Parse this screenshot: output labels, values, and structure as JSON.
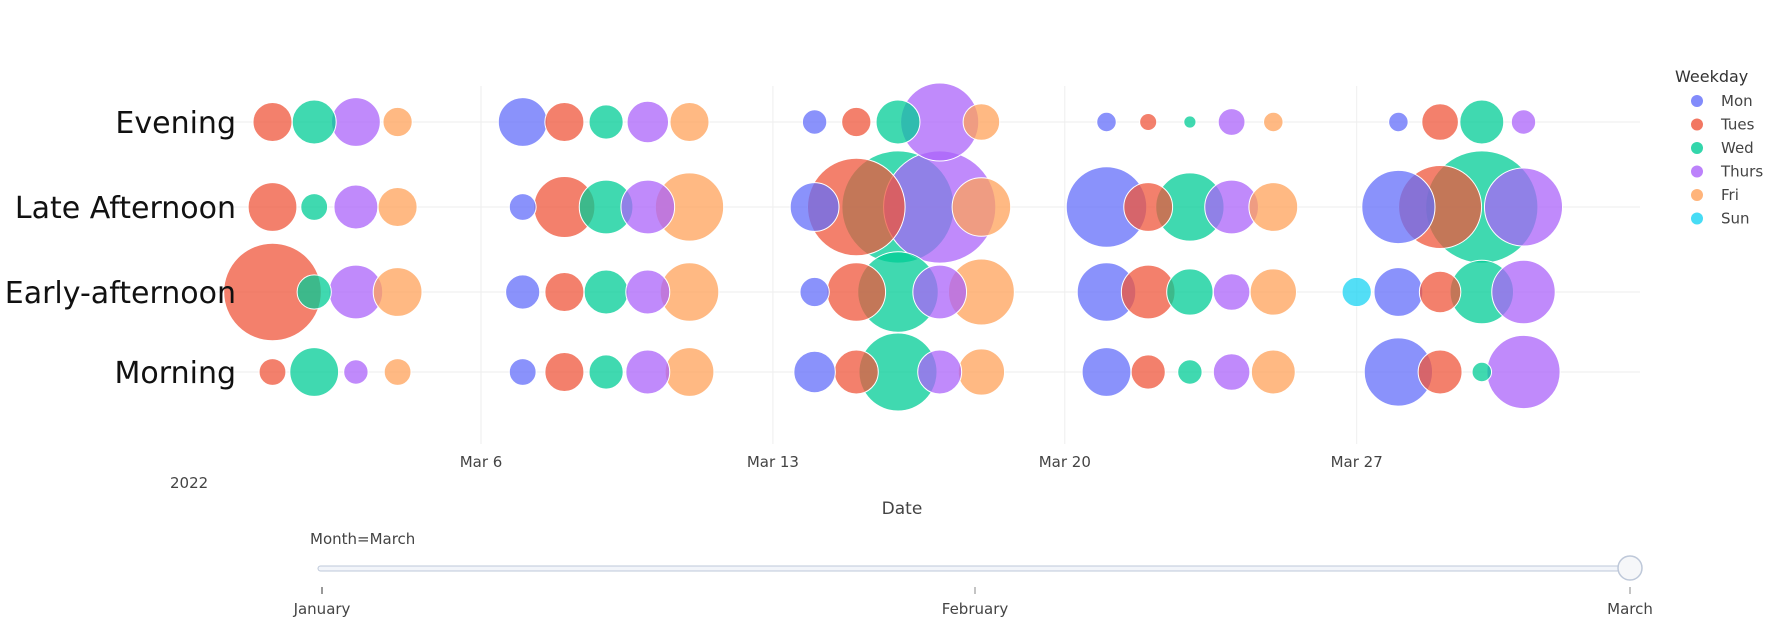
{
  "chart_data": {
    "type": "scatter",
    "xlabel": "Date",
    "year_label": "2022",
    "x_ticks": [
      "Mar 6",
      "Mar 13",
      "Mar 20",
      "Mar 27"
    ],
    "y_categories": [
      "Morning",
      "Early-afternoon",
      "Late Afternoon",
      "Evening"
    ],
    "legend": {
      "title": "Weekday",
      "position": "top-right"
    },
    "grid": true,
    "series": [
      {
        "name": "Mon",
        "color": "#636EFA",
        "points": [
          {
            "date": "2022-03-07",
            "time": "Evening",
            "size": 20
          },
          {
            "date": "2022-03-07",
            "time": "Late Afternoon",
            "size": 11
          },
          {
            "date": "2022-03-07",
            "time": "Early-afternoon",
            "size": 14
          },
          {
            "date": "2022-03-07",
            "time": "Morning",
            "size": 11
          },
          {
            "date": "2022-03-14",
            "time": "Evening",
            "size": 10
          },
          {
            "date": "2022-03-14",
            "time": "Late Afternoon",
            "size": 20
          },
          {
            "date": "2022-03-14",
            "time": "Early-afternoon",
            "size": 12
          },
          {
            "date": "2022-03-14",
            "time": "Morning",
            "size": 17
          },
          {
            "date": "2022-03-21",
            "time": "Evening",
            "size": 8
          },
          {
            "date": "2022-03-21",
            "time": "Late Afternoon",
            "size": 33
          },
          {
            "date": "2022-03-21",
            "time": "Early-afternoon",
            "size": 24
          },
          {
            "date": "2022-03-21",
            "time": "Morning",
            "size": 20
          },
          {
            "date": "2022-03-28",
            "time": "Evening",
            "size": 8
          },
          {
            "date": "2022-03-28",
            "time": "Late Afternoon",
            "size": 30
          },
          {
            "date": "2022-03-28",
            "time": "Early-afternoon",
            "size": 20
          },
          {
            "date": "2022-03-28",
            "time": "Morning",
            "size": 28
          }
        ]
      },
      {
        "name": "Tues",
        "color": "#EF553B",
        "points": [
          {
            "date": "2022-03-01",
            "time": "Evening",
            "size": 16
          },
          {
            "date": "2022-03-01",
            "time": "Late Afternoon",
            "size": 20
          },
          {
            "date": "2022-03-01",
            "time": "Early-afternoon",
            "size": 40
          },
          {
            "date": "2022-03-01",
            "time": "Morning",
            "size": 11
          },
          {
            "date": "2022-03-08",
            "time": "Evening",
            "size": 16
          },
          {
            "date": "2022-03-08",
            "time": "Late Afternoon",
            "size": 25
          },
          {
            "date": "2022-03-08",
            "time": "Early-afternoon",
            "size": 16
          },
          {
            "date": "2022-03-08",
            "time": "Morning",
            "size": 16
          },
          {
            "date": "2022-03-15",
            "time": "Evening",
            "size": 12
          },
          {
            "date": "2022-03-15",
            "time": "Late Afternoon",
            "size": 40
          },
          {
            "date": "2022-03-15",
            "time": "Early-afternoon",
            "size": 24
          },
          {
            "date": "2022-03-15",
            "time": "Morning",
            "size": 18
          },
          {
            "date": "2022-03-22",
            "time": "Evening",
            "size": 7
          },
          {
            "date": "2022-03-22",
            "time": "Late Afternoon",
            "size": 20
          },
          {
            "date": "2022-03-22",
            "time": "Early-afternoon",
            "size": 22
          },
          {
            "date": "2022-03-22",
            "time": "Morning",
            "size": 14
          },
          {
            "date": "2022-03-29",
            "time": "Evening",
            "size": 15
          },
          {
            "date": "2022-03-29",
            "time": "Late Afternoon",
            "size": 34
          },
          {
            "date": "2022-03-29",
            "time": "Early-afternoon",
            "size": 17
          },
          {
            "date": "2022-03-29",
            "time": "Morning",
            "size": 18
          }
        ]
      },
      {
        "name": "Wed",
        "color": "#00CC96",
        "points": [
          {
            "date": "2022-03-02",
            "time": "Evening",
            "size": 18
          },
          {
            "date": "2022-03-02",
            "time": "Late Afternoon",
            "size": 11
          },
          {
            "date": "2022-03-02",
            "time": "Early-afternoon",
            "size": 14
          },
          {
            "date": "2022-03-02",
            "time": "Morning",
            "size": 20
          },
          {
            "date": "2022-03-09",
            "time": "Evening",
            "size": 14
          },
          {
            "date": "2022-03-09",
            "time": "Late Afternoon",
            "size": 22
          },
          {
            "date": "2022-03-09",
            "time": "Early-afternoon",
            "size": 18
          },
          {
            "date": "2022-03-09",
            "time": "Morning",
            "size": 14
          },
          {
            "date": "2022-03-16",
            "time": "Evening",
            "size": 18
          },
          {
            "date": "2022-03-16",
            "time": "Late Afternoon",
            "size": 46
          },
          {
            "date": "2022-03-16",
            "time": "Early-afternoon",
            "size": 33
          },
          {
            "date": "2022-03-16",
            "time": "Morning",
            "size": 32
          },
          {
            "date": "2022-03-23",
            "time": "Evening",
            "size": 5
          },
          {
            "date": "2022-03-23",
            "time": "Late Afternoon",
            "size": 28
          },
          {
            "date": "2022-03-23",
            "time": "Early-afternoon",
            "size": 19
          },
          {
            "date": "2022-03-23",
            "time": "Morning",
            "size": 10
          },
          {
            "date": "2022-03-30",
            "time": "Evening",
            "size": 18
          },
          {
            "date": "2022-03-30",
            "time": "Late Afternoon",
            "size": 46
          },
          {
            "date": "2022-03-30",
            "time": "Early-afternoon",
            "size": 26
          },
          {
            "date": "2022-03-30",
            "time": "Morning",
            "size": 8
          }
        ]
      },
      {
        "name": "Thurs",
        "color": "#AB63FA",
        "points": [
          {
            "date": "2022-03-03",
            "time": "Evening",
            "size": 20
          },
          {
            "date": "2022-03-03",
            "time": "Late Afternoon",
            "size": 18
          },
          {
            "date": "2022-03-03",
            "time": "Early-afternoon",
            "size": 22
          },
          {
            "date": "2022-03-03",
            "time": "Morning",
            "size": 10
          },
          {
            "date": "2022-03-10",
            "time": "Evening",
            "size": 17
          },
          {
            "date": "2022-03-10",
            "time": "Late Afternoon",
            "size": 22
          },
          {
            "date": "2022-03-10",
            "time": "Early-afternoon",
            "size": 18
          },
          {
            "date": "2022-03-10",
            "time": "Morning",
            "size": 18
          },
          {
            "date": "2022-03-17",
            "time": "Evening",
            "size": 32
          },
          {
            "date": "2022-03-17",
            "time": "Late Afternoon",
            "size": 46
          },
          {
            "date": "2022-03-17",
            "time": "Early-afternoon",
            "size": 22
          },
          {
            "date": "2022-03-17",
            "time": "Morning",
            "size": 18
          },
          {
            "date": "2022-03-24",
            "time": "Evening",
            "size": 11
          },
          {
            "date": "2022-03-24",
            "time": "Late Afternoon",
            "size": 22
          },
          {
            "date": "2022-03-24",
            "time": "Early-afternoon",
            "size": 15
          },
          {
            "date": "2022-03-24",
            "time": "Morning",
            "size": 15
          },
          {
            "date": "2022-03-31",
            "time": "Evening",
            "size": 10
          },
          {
            "date": "2022-03-31",
            "time": "Late Afternoon",
            "size": 32
          },
          {
            "date": "2022-03-31",
            "time": "Early-afternoon",
            "size": 26
          },
          {
            "date": "2022-03-31",
            "time": "Morning",
            "size": 30
          }
        ]
      },
      {
        "name": "Fri",
        "color": "#FFA15A",
        "points": [
          {
            "date": "2022-03-04",
            "time": "Evening",
            "size": 12
          },
          {
            "date": "2022-03-04",
            "time": "Late Afternoon",
            "size": 16
          },
          {
            "date": "2022-03-04",
            "time": "Early-afternoon",
            "size": 20
          },
          {
            "date": "2022-03-04",
            "time": "Morning",
            "size": 11
          },
          {
            "date": "2022-03-11",
            "time": "Evening",
            "size": 16
          },
          {
            "date": "2022-03-11",
            "time": "Late Afternoon",
            "size": 28
          },
          {
            "date": "2022-03-11",
            "time": "Early-afternoon",
            "size": 24
          },
          {
            "date": "2022-03-11",
            "time": "Morning",
            "size": 20
          },
          {
            "date": "2022-03-18",
            "time": "Evening",
            "size": 15
          },
          {
            "date": "2022-03-18",
            "time": "Late Afternoon",
            "size": 24
          },
          {
            "date": "2022-03-18",
            "time": "Early-afternoon",
            "size": 27
          },
          {
            "date": "2022-03-18",
            "time": "Morning",
            "size": 19
          },
          {
            "date": "2022-03-25",
            "time": "Evening",
            "size": 8
          },
          {
            "date": "2022-03-25",
            "time": "Late Afternoon",
            "size": 20
          },
          {
            "date": "2022-03-25",
            "time": "Early-afternoon",
            "size": 19
          },
          {
            "date": "2022-03-25",
            "time": "Morning",
            "size": 18
          }
        ]
      },
      {
        "name": "Sun",
        "color": "#19D3F3",
        "points": [
          {
            "date": "2022-03-27",
            "time": "Early-afternoon",
            "size": 12
          }
        ]
      }
    ]
  },
  "slider": {
    "current_label": "Month=March",
    "steps": [
      "January",
      "February",
      "March"
    ],
    "active_index": 2
  }
}
